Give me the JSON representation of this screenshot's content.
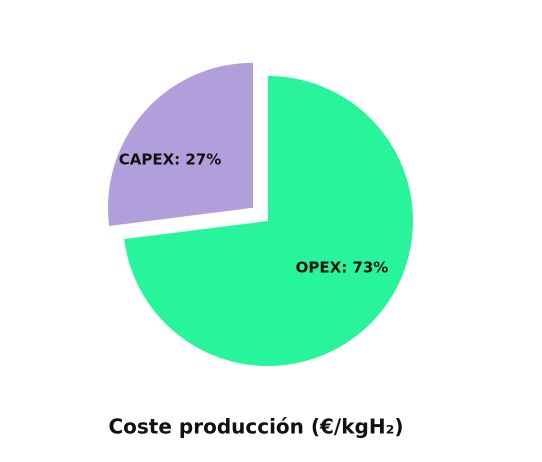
{
  "chart_data": {
    "type": "pie",
    "title": "Coste producción (€/kgH₂)",
    "values": [
      73,
      27
    ],
    "value_labels": [
      "OPEX: 73%",
      "CAPEX: 27%"
    ],
    "colors": [
      "#28f59b",
      "#b19fdc"
    ]
  }
}
